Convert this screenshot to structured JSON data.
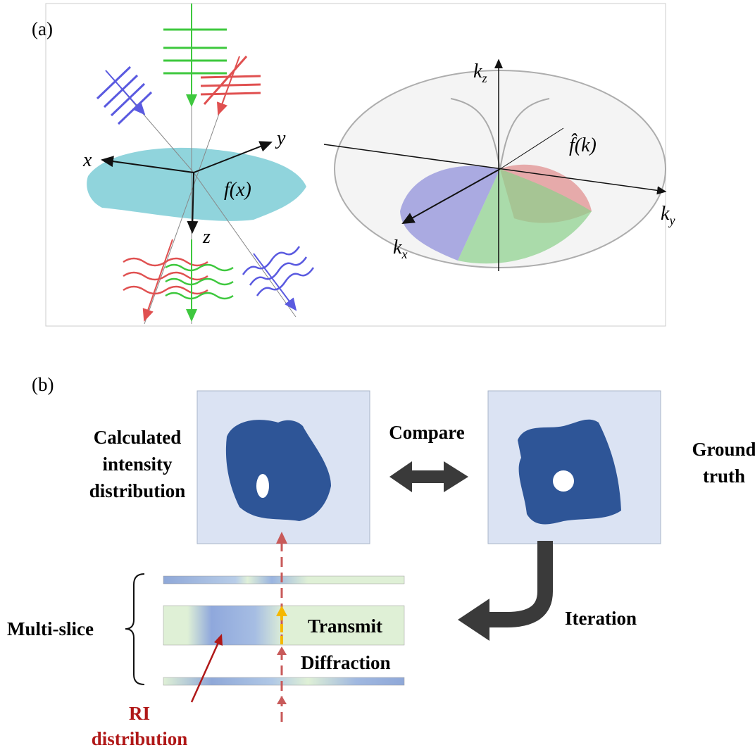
{
  "panel_a": {
    "label": "(a)",
    "real_space": {
      "axes": {
        "x": "x",
        "y": "y",
        "z": "z"
      },
      "object_label": "f(x)"
    },
    "fourier_space": {
      "axes": {
        "kz": {
          "main": "k",
          "sub": "z"
        },
        "ky": {
          "main": "k",
          "sub": "y"
        },
        "kx": {
          "main": "k",
          "sub": "x"
        }
      },
      "object_label": "f̂(k)"
    }
  },
  "panel_b": {
    "label": "(b)",
    "calculated": [
      "Calculated",
      "intensity",
      "distribution"
    ],
    "compare": "Compare",
    "ground_truth": [
      "Ground",
      "truth"
    ],
    "multi_slice": "Multi-slice",
    "transmit": "Transmit",
    "diffraction": "Diffraction",
    "iteration": "Iteration",
    "ri_distribution": [
      "RI",
      "distribution"
    ]
  }
}
